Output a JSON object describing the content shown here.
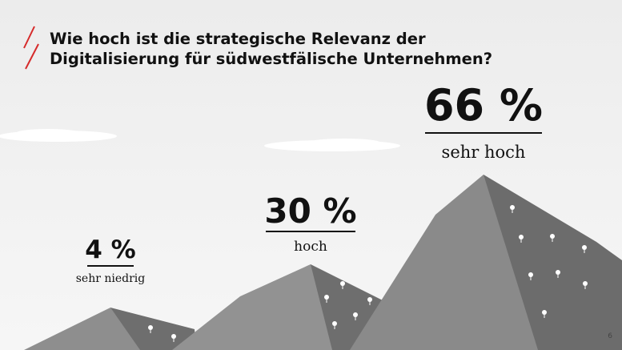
{
  "slide": {
    "title_lines": [
      "Wie hoch ist die strategische Relevanz der",
      "Digitalisierung für südwestfälische Unternehmen?"
    ],
    "page_number": "6",
    "accent_color": "#d62a2a"
  },
  "chart_data": {
    "type": "bar",
    "title": "Wie hoch ist die strategische Relevanz der Digitalisierung für südwestfälische Unternehmen?",
    "categories": [
      "sehr niedrig",
      "hoch",
      "sehr hoch"
    ],
    "values": [
      4,
      30,
      66
    ],
    "value_labels": [
      "4 %",
      "30 %",
      "66 %"
    ],
    "unit": "%",
    "style": "pictorial mountains (height encodes share)"
  }
}
